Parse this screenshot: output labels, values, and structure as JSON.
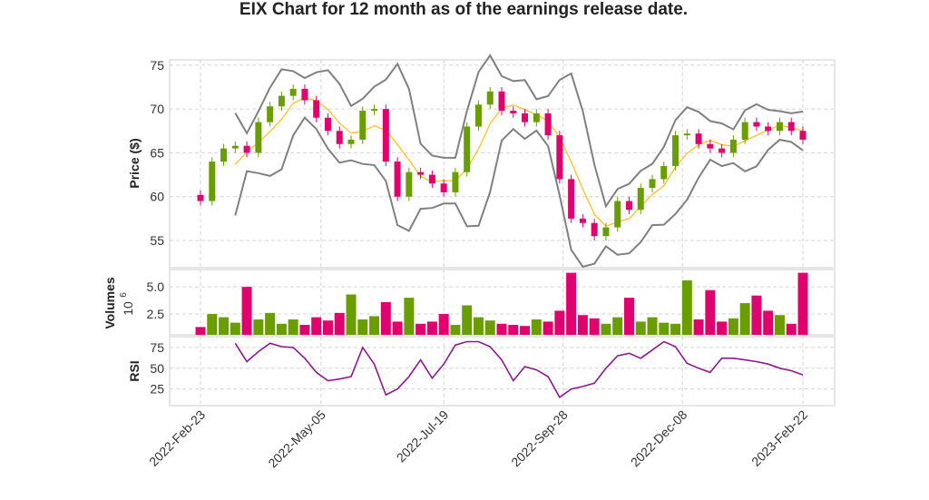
{
  "chart_data": {
    "title": "EIX Chart for 12 month as of the earnings release date.",
    "type": "candlestick",
    "colors": {
      "up": "#6a9e00",
      "down": "#e0006e",
      "sma": "#ffc125",
      "bands": "#808080",
      "rsi": "#8b1a8b"
    },
    "grid": true,
    "x_tick_labels": [
      "2022-Feb-23",
      "2022-May-05",
      "2022-Jul-19",
      "2022-Sep-28",
      "2022-Dec-08",
      "2023-Feb-22"
    ],
    "price_panel": {
      "ylabel": "Price ($)",
      "yticks": [
        55,
        60,
        65,
        70,
        75
      ],
      "ylim": [
        51.9,
        75.6
      ],
      "dates": [
        "2022-02-23",
        "2022-03-02",
        "2022-03-09",
        "2022-03-16",
        "2022-03-23",
        "2022-03-30",
        "2022-04-06",
        "2022-04-13",
        "2022-04-20",
        "2022-04-27",
        "2022-05-04",
        "2022-05-11",
        "2022-05-18",
        "2022-05-25",
        "2022-06-01",
        "2022-06-08",
        "2022-06-15",
        "2022-06-22",
        "2022-06-29",
        "2022-07-06",
        "2022-07-13",
        "2022-07-20",
        "2022-07-27",
        "2022-08-03",
        "2022-08-10",
        "2022-08-17",
        "2022-08-24",
        "2022-08-31",
        "2022-09-07",
        "2022-09-14",
        "2022-09-21",
        "2022-09-28",
        "2022-10-05",
        "2022-10-12",
        "2022-10-19",
        "2022-10-26",
        "2022-11-02",
        "2022-11-09",
        "2022-11-16",
        "2022-11-23",
        "2022-11-30",
        "2022-12-07",
        "2022-12-14",
        "2022-12-21",
        "2022-12-28",
        "2023-01-04",
        "2023-01-11",
        "2023-01-18",
        "2023-01-25",
        "2023-02-01",
        "2023-02-08",
        "2023-02-15",
        "2023-02-22"
      ],
      "close": [
        59.5,
        64,
        65.5,
        65.8,
        65,
        68.5,
        70.3,
        71.5,
        72.3,
        71,
        69,
        67.5,
        66,
        66.5,
        69.8,
        70,
        64,
        60,
        62.8,
        62.5,
        61.5,
        60.5,
        62.8,
        68,
        70.5,
        72,
        69.8,
        69.5,
        68.5,
        69.5,
        67,
        62,
        57.5,
        57,
        55.5,
        56.5,
        59.5,
        58.5,
        61,
        62,
        63.5,
        67,
        67.2,
        66,
        65.5,
        65,
        66.5,
        68.5,
        68,
        67.5,
        68.5,
        67.5,
        66.5
      ],
      "open": [
        60.2,
        59.5,
        64,
        65.5,
        65.8,
        65,
        68.5,
        70.3,
        71.5,
        72.3,
        71,
        69,
        67.5,
        66,
        66.5,
        69.8,
        70,
        64,
        60,
        62.8,
        62.5,
        61.5,
        60.5,
        62.8,
        68,
        70.5,
        72,
        69.8,
        69.5,
        68.5,
        69.5,
        67,
        62,
        57.5,
        57,
        55.5,
        56.5,
        59.5,
        58.5,
        61,
        62,
        63.5,
        67,
        67.2,
        66,
        65.5,
        65,
        66.5,
        68.5,
        68,
        67.5,
        68.5,
        67.5
      ],
      "indicators": [
        "SMA(20)",
        "Bollinger Bands(20, 2)"
      ]
    },
    "volume_panel": {
      "ylabel": "Volumes",
      "scale_label": "10",
      "scale_exp": "6",
      "yticks": [
        "2.5",
        "5.0"
      ],
      "ylim": [
        0.58,
        6.6
      ],
      "values": [
        1.3,
        2.5,
        2.2,
        1.7,
        5.0,
        2.0,
        2.6,
        1.6,
        2.0,
        1.5,
        2.2,
        1.9,
        2.6,
        4.3,
        2.0,
        2.3,
        3.6,
        1.8,
        4.0,
        1.6,
        1.8,
        2.5,
        1.5,
        3.3,
        2.2,
        1.9,
        1.6,
        1.5,
        1.4,
        2.0,
        1.8,
        2.8,
        6.3,
        2.4,
        2.1,
        1.6,
        2.2,
        4.0,
        1.8,
        2.2,
        1.7,
        1.6,
        5.6,
        2.0,
        4.7,
        1.8,
        2.1,
        3.5,
        4.2,
        2.8,
        2.4,
        1.6,
        6.3
      ]
    },
    "rsi_panel": {
      "ylabel": "RSI",
      "yticks": [
        25,
        50,
        75
      ],
      "ylim": [
        5,
        88
      ],
      "values": [
        null,
        null,
        null,
        80,
        58,
        70,
        80,
        76,
        75,
        62,
        45,
        35,
        37,
        40,
        75,
        55,
        18,
        25,
        40,
        60,
        38,
        55,
        78,
        82,
        82,
        76,
        60,
        35,
        52,
        48,
        40,
        15,
        25,
        28,
        32,
        50,
        65,
        68,
        62,
        72,
        82,
        76,
        56,
        50,
        45,
        62,
        62,
        60,
        58,
        55,
        50,
        47,
        42
      ]
    }
  }
}
